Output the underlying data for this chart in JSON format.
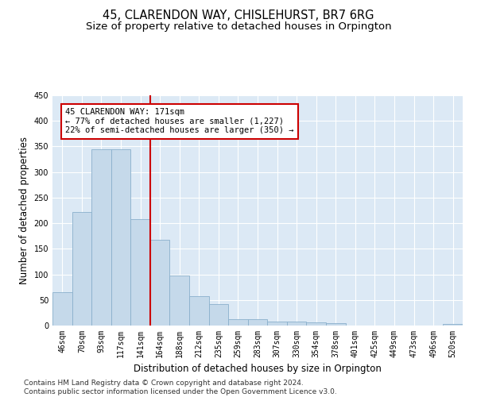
{
  "title": "45, CLARENDON WAY, CHISLEHURST, BR7 6RG",
  "subtitle": "Size of property relative to detached houses in Orpington",
  "xlabel": "Distribution of detached houses by size in Orpington",
  "ylabel": "Number of detached properties",
  "categories": [
    "46sqm",
    "70sqm",
    "93sqm",
    "117sqm",
    "141sqm",
    "164sqm",
    "188sqm",
    "212sqm",
    "235sqm",
    "259sqm",
    "283sqm",
    "307sqm",
    "330sqm",
    "354sqm",
    "378sqm",
    "401sqm",
    "425sqm",
    "449sqm",
    "473sqm",
    "496sqm",
    "520sqm"
  ],
  "values": [
    65,
    222,
    345,
    345,
    208,
    168,
    97,
    57,
    42,
    13,
    12,
    7,
    7,
    6,
    5,
    0,
    0,
    0,
    0,
    0,
    3
  ],
  "bar_color": "#c5d9ea",
  "bar_edge_color": "#8ab0cc",
  "property_line_x": 4.5,
  "property_line_color": "#cc0000",
  "annotation_text": "45 CLARENDON WAY: 171sqm\n← 77% of detached houses are smaller (1,227)\n22% of semi-detached houses are larger (350) →",
  "annotation_box_color": "#cc0000",
  "ylim": [
    0,
    450
  ],
  "yticks": [
    0,
    50,
    100,
    150,
    200,
    250,
    300,
    350,
    400,
    450
  ],
  "background_color": "#dce9f5",
  "grid_color": "#ffffff",
  "footer_line1": "Contains HM Land Registry data © Crown copyright and database right 2024.",
  "footer_line2": "Contains public sector information licensed under the Open Government Licence v3.0.",
  "title_fontsize": 10.5,
  "subtitle_fontsize": 9.5,
  "tick_fontsize": 7,
  "ylabel_fontsize": 8.5,
  "xlabel_fontsize": 8.5,
  "footer_fontsize": 6.5
}
